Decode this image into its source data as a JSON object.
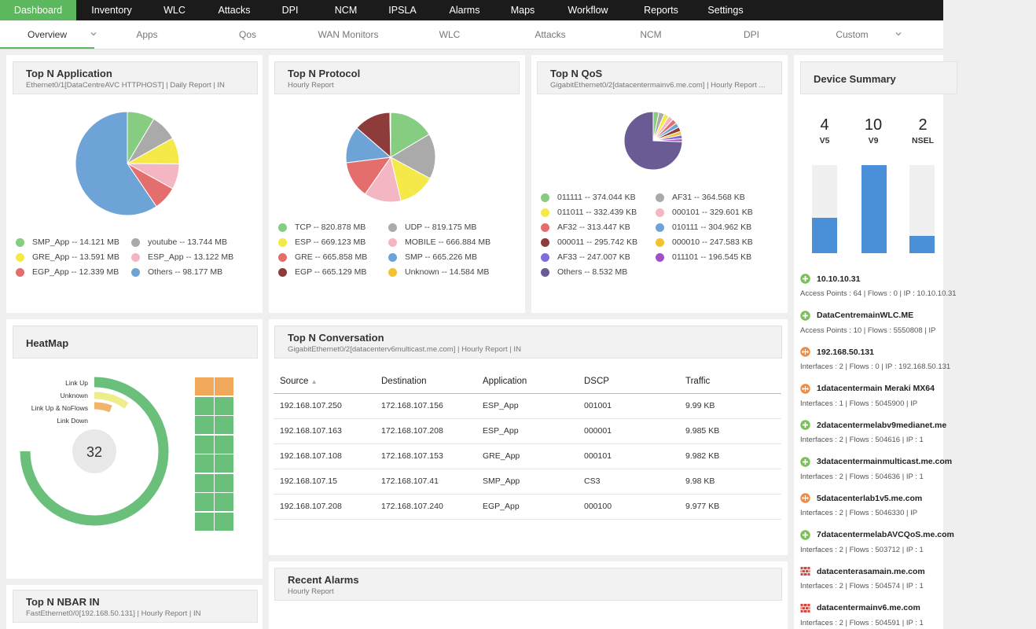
{
  "colors": {
    "accent": "#5cb85c",
    "topnav_bg": "#1b1b1b",
    "bar": "#4a90d9"
  },
  "topnav": {
    "tabs": [
      "Dashboard",
      "Inventory",
      "WLC",
      "Attacks",
      "DPI",
      "NCM",
      "IPSLA",
      "Alarms",
      "Maps",
      "Workflow",
      "Reports",
      "Settings"
    ],
    "active": "Dashboard"
  },
  "subnav": {
    "tabs": [
      "Overview",
      "Apps",
      "Qos",
      "WAN Monitors",
      "WLC",
      "Attacks",
      "NCM",
      "DPI",
      "Custom"
    ],
    "active": "Overview"
  },
  "top_app": {
    "title": "Top N Application",
    "subtitle": "Ethernet0/1[DataCentreAVC HTTPHOST] | Daily Report | IN",
    "legend": [
      {
        "label": "SMP_App -- 14.121 MB",
        "color": "#86cc81"
      },
      {
        "label": "youtube -- 13.744 MB",
        "color": "#aaaaaa"
      },
      {
        "label": "GRE_App -- 13.591 MB",
        "color": "#f5e94a"
      },
      {
        "label": "ESP_App -- 13.122 MB",
        "color": "#f5b6c4"
      },
      {
        "label": "EGP_App -- 12.339 MB",
        "color": "#e46d6d"
      },
      {
        "label": "Others -- 98.177 MB",
        "color": "#6ea3d8"
      }
    ]
  },
  "top_protocol": {
    "title": "Top N Protocol",
    "subtitle": "Hourly Report",
    "legend": [
      {
        "label": "TCP -- 820.878 MB",
        "color": "#86cc81"
      },
      {
        "label": "UDP -- 819.175 MB",
        "color": "#aaaaaa"
      },
      {
        "label": "ESP -- 669.123 MB",
        "color": "#f5e94a"
      },
      {
        "label": "MOBILE -- 666.884 MB",
        "color": "#f5b6c4"
      },
      {
        "label": "GRE -- 665.858 MB",
        "color": "#e46d6d"
      },
      {
        "label": "SMP -- 665.226 MB",
        "color": "#6ea3d8"
      },
      {
        "label": "EGP -- 665.129 MB",
        "color": "#8e3b3b"
      },
      {
        "label": "Unknown -- 14.584 MB",
        "color": "#f1c232"
      }
    ]
  },
  "top_qos": {
    "title": "Top N QoS",
    "subtitle": "GigabitEthernet0/2[datacentermainv6.me.com] | Hourly Report ...",
    "legend": [
      {
        "label": "011111 -- 374.044 KB",
        "color": "#86cc81"
      },
      {
        "label": "AF31 -- 364.568 KB",
        "color": "#aaaaaa"
      },
      {
        "label": "011011 -- 332.439 KB",
        "color": "#f5e94a"
      },
      {
        "label": "000101 -- 329.601 KB",
        "color": "#f5b6c4"
      },
      {
        "label": "AF32 -- 313.447 KB",
        "color": "#e46d6d"
      },
      {
        "label": "010111 -- 304.962 KB",
        "color": "#6ea3d8"
      },
      {
        "label": "000011 -- 295.742 KB",
        "color": "#8e3b3b"
      },
      {
        "label": "000010 -- 247.583 KB",
        "color": "#f1c232"
      },
      {
        "label": "AF33 -- 247.007 KB",
        "color": "#7d6fd6"
      },
      {
        "label": "011101 -- 196.545 KB",
        "color": "#a24fc8"
      },
      {
        "label": "Others -- 8.532 MB",
        "color": "#6b5b95"
      }
    ]
  },
  "heatmap": {
    "title": "HeatMap",
    "center_value": "32",
    "labels": [
      "Link Up",
      "Unknown",
      "Link Up & NoFlows",
      "Link Down"
    ]
  },
  "conversation": {
    "title": "Top N Conversation",
    "subtitle": "GigabitEthernet0/2[datacenterv6multicast.me.com] | Hourly Report | IN",
    "columns": [
      "Source",
      "Destination",
      "Application",
      "DSCP",
      "Traffic"
    ],
    "rows": [
      [
        "192.168.107.250",
        "172.168.107.156",
        "ESP_App",
        "001001",
        "9.99 KB"
      ],
      [
        "192.168.107.163",
        "172.168.107.208",
        "ESP_App",
        "000001",
        "9.985 KB"
      ],
      [
        "192.168.107.108",
        "172.168.107.153",
        "GRE_App",
        "000101",
        "9.982 KB"
      ],
      [
        "192.168.107.15",
        "172.168.107.41",
        "SMP_App",
        "CS3",
        "9.98 KB"
      ],
      [
        "192.168.107.208",
        "172.168.107.240",
        "EGP_App",
        "000100",
        "9.977 KB"
      ]
    ]
  },
  "alarms": {
    "title": "Recent Alarms",
    "subtitle": "Hourly Report"
  },
  "nbar": {
    "title": "Top N NBAR IN",
    "subtitle": "FastEthernet0/0[192.168.50.131] | Hourly Report | IN"
  },
  "device_summary": {
    "title": "Device Summary",
    "counts": [
      {
        "value": "4",
        "label": "V5",
        "fill": 0.4
      },
      {
        "value": "10",
        "label": "V9",
        "fill": 1.0
      },
      {
        "value": "2",
        "label": "NSEL",
        "fill": 0.2
      }
    ],
    "devices": [
      {
        "name": "10.10.10.31",
        "icon": "plus-icon",
        "detail": "Access Points : 64  |  Flows : 0  |  IP : 10.10.10.31"
      },
      {
        "name": "DataCentremainWLC.ME",
        "icon": "plus-icon",
        "detail": "Access Points : 10  |  Flows : 5550808  |  IP"
      },
      {
        "name": "192.168.50.131",
        "icon": "router-icon",
        "detail": "Interfaces : 2  |  Flows : 0  |  IP : 192.168.50.131"
      },
      {
        "name": "1datacentermain Meraki MX64",
        "icon": "router-icon",
        "detail": "Interfaces : 1  |  Flows : 5045900  |  IP"
      },
      {
        "name": "2datacentermelabv9medianet.me",
        "icon": "plus-icon",
        "detail": "Interfaces : 2  |  Flows : 504616  |  IP : 1"
      },
      {
        "name": "3datacentermainmulticast.me.com",
        "icon": "plus-icon",
        "detail": "Interfaces : 2  |  Flows : 504636  |  IP : 1"
      },
      {
        "name": "5datacenterlab1v5.me.com",
        "icon": "router-icon",
        "detail": "Interfaces : 2  |  Flows : 5046330  |  IP"
      },
      {
        "name": "7datacentermelabAVCQoS.me.com",
        "icon": "plus-icon",
        "detail": "Interfaces : 2  |  Flows : 503712  |  IP : 1"
      },
      {
        "name": "datacenterasamain.me.com",
        "icon": "firewall-icon",
        "detail": "Interfaces : 2  |  Flows : 504574  |  IP : 1"
      },
      {
        "name": "datacentermainv6.me.com",
        "icon": "firewall-icon",
        "detail": "Interfaces : 2  |  Flows : 504591  |  IP : 1"
      }
    ]
  }
}
